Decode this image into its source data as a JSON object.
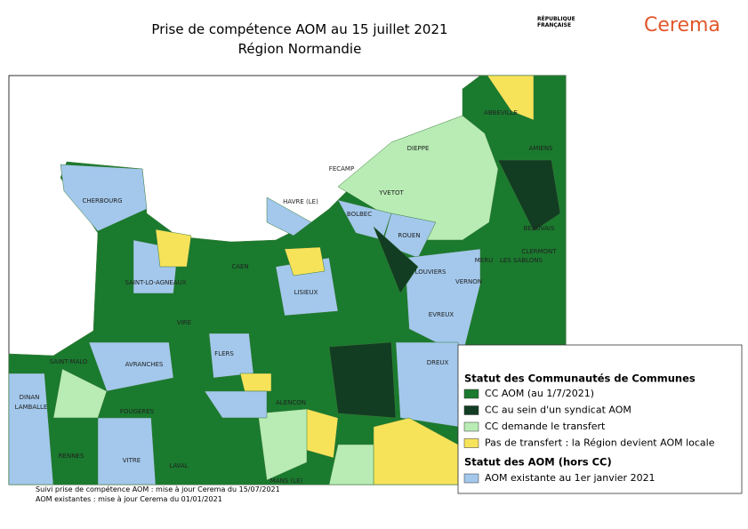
{
  "header": {
    "title": "Prise de compétence AOM au 15 juillet 2021",
    "subtitle": "Région Normandie",
    "logo_state": "RÉPUBLIQUE FRANÇAISE",
    "logo_cerema": "Cerema"
  },
  "map": {
    "places": [
      "ABBEVILLE",
      "DIEPPE",
      "AMIENS",
      "FECAMP",
      "YVETOT",
      "CHERBOURG",
      "HAVRE (LE)",
      "BOLBEC",
      "BEAUVAIS",
      "ROUEN",
      "CLERMONT",
      "MERU",
      "LES SABLONS",
      "CAEN",
      "SAINT-LO-AGNEAUX",
      "LOUVIERS",
      "VERNON",
      "LISIEUX",
      "EVREUX",
      "VIRE",
      "FLERS",
      "SAINT-MALO",
      "AVRANCHES",
      "DREUX",
      "DINAN",
      "LAMBALLE",
      "ALENCON",
      "FOUGERES",
      "RENNES",
      "VITRE",
      "LAVAL",
      "MANS (LE)"
    ]
  },
  "legend": {
    "title": "Statut des Communautés de Communes",
    "items": [
      {
        "label": "CC AOM (au 1/7/2021)",
        "color": "#1a7a2e"
      },
      {
        "label": "CC au sein d'un syndicat AOM",
        "color": "#123d22"
      },
      {
        "label": "CC demande le transfert",
        "color": "#b8ecb4"
      },
      {
        "label": "Pas de transfert : la Région devient AOM locale",
        "color": "#f7e35a"
      }
    ],
    "title2": "Statut des AOM (hors CC)",
    "items2": [
      {
        "label": "AOM existante au 1er janvier 2021",
        "color": "#a3c8ec"
      }
    ]
  },
  "footnotes": [
    "Suivi prise de compétence AOM : mise à jour Cerema du 15/07/2021",
    "AOM existantes : mise à jour Cerema du 01/01/2021"
  ]
}
